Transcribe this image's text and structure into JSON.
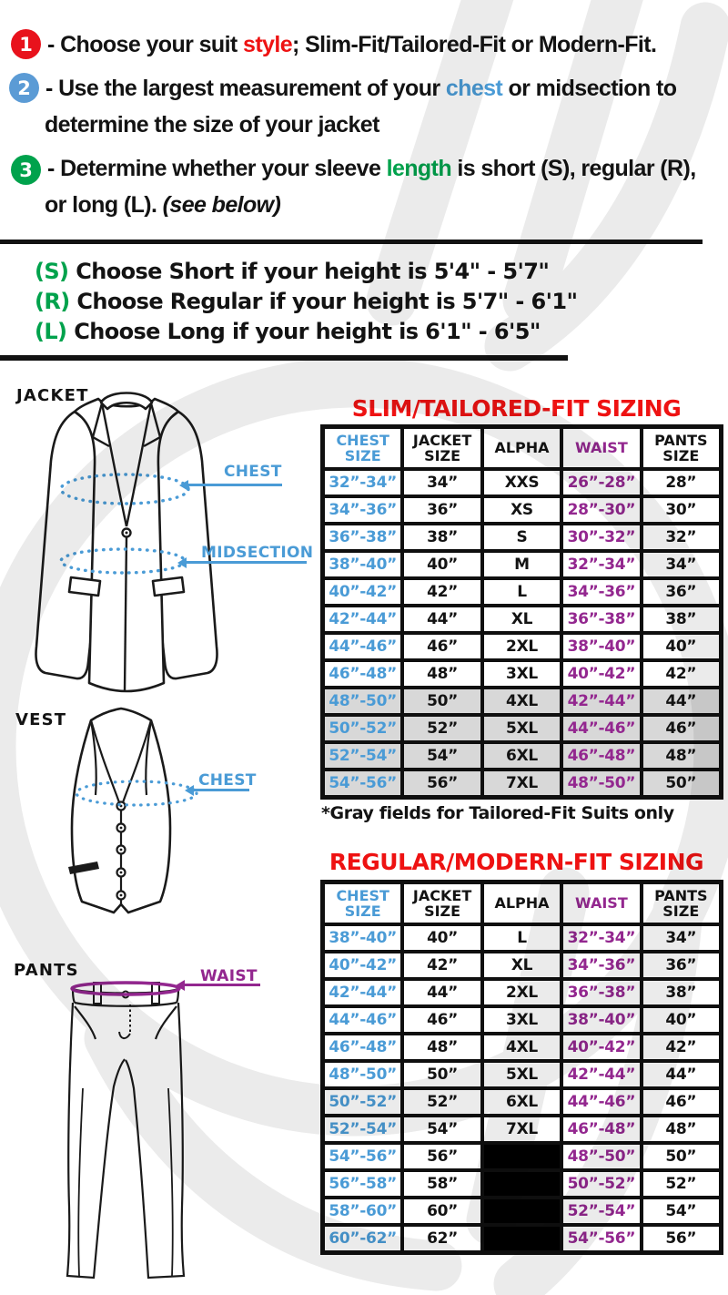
{
  "colors": {
    "red": "#ee1212",
    "blue": "#4a9bd6",
    "purple": "#93278f",
    "green": "#00a24c",
    "badge_red": "#e8121c",
    "badge_blue": "#5b9bd5",
    "badge_green": "#00a24c",
    "gray_row": "#d8d8d8",
    "table_border": "#0f0f0f"
  },
  "instructions": {
    "badges": [
      {
        "number": "1",
        "color": "#e8121c"
      },
      {
        "number": "2",
        "color": "#5b9bd5"
      },
      {
        "number": "3",
        "color": "#00a24c"
      }
    ],
    "lines": [
      {
        "parts": [
          {
            "text": "- Choose your suit "
          },
          {
            "text": "style",
            "color": "red"
          },
          {
            "text": "; Slim-Fit/Tailored-Fit or Modern-Fit."
          }
        ]
      },
      {
        "parts": [
          {
            "text": "- Use the largest measurement of your "
          },
          {
            "text": "chest",
            "color": "blue"
          },
          {
            "text": " or midsection to"
          }
        ]
      },
      {
        "parts": [
          {
            "text": "determine the size of your jacket"
          }
        ]
      },
      {
        "parts": [
          {
            "text": "- Determine whether your sleeve "
          },
          {
            "text": "length",
            "color": "green"
          },
          {
            "text": " is short (S), regular (R),"
          }
        ]
      },
      {
        "parts": [
          {
            "text": "or long (L). "
          },
          {
            "text": "(see below)",
            "italic": true
          }
        ]
      }
    ]
  },
  "height_guide": {
    "items": [
      {
        "prefix": "(S)",
        "text": " Choose Short if your height is 5'4\" - 5'7\""
      },
      {
        "prefix": "(R)",
        "text": " Choose Regular if your height is 5'7\" - 6'1\""
      },
      {
        "prefix": "(L)",
        "text": " Choose Long if your height is 6'1\" - 6'5\""
      }
    ]
  },
  "figures": {
    "jacket": {
      "label": "JACKET",
      "measurements": [
        {
          "label": "CHEST"
        },
        {
          "label": "MIDSECTION"
        }
      ]
    },
    "vest": {
      "label": "VEST",
      "measurements": [
        {
          "label": "CHEST"
        }
      ]
    },
    "pants": {
      "label": "PANTS",
      "measurements": [
        {
          "label": "WAIST"
        }
      ]
    }
  },
  "tables": [
    {
      "title": "SLIM/TAILORED-FIT SIZING",
      "note": "*Gray fields for Tailored-Fit Suits only",
      "columns": [
        {
          "lines": [
            "CHEST",
            "SIZE"
          ],
          "color": "blue"
        },
        {
          "lines": [
            "JACKET",
            "SIZE"
          ]
        },
        {
          "lines": [
            "ALPHA"
          ]
        },
        {
          "lines": [
            "WAIST"
          ],
          "color": "purple"
        },
        {
          "lines": [
            "PANTS",
            "SIZE"
          ]
        }
      ],
      "rows": [
        {
          "cells": [
            "32”-34”",
            "34”",
            "XXS",
            "26”-28”",
            "28”"
          ]
        },
        {
          "cells": [
            "34”-36”",
            "36”",
            "XS",
            "28”-30”",
            "30”"
          ]
        },
        {
          "cells": [
            "36”-38”",
            "38”",
            "S",
            "30”-32”",
            "32”"
          ]
        },
        {
          "cells": [
            "38”-40”",
            "40”",
            "M",
            "32”-34”",
            "34”"
          ]
        },
        {
          "cells": [
            "40”-42”",
            "42”",
            "L",
            "34”-36”",
            "36”"
          ]
        },
        {
          "cells": [
            "42”-44”",
            "44”",
            "XL",
            "36”-38”",
            "38”"
          ]
        },
        {
          "cells": [
            "44”-46”",
            "46”",
            "2XL",
            "38”-40”",
            "40”"
          ]
        },
        {
          "cells": [
            "46”-48”",
            "48”",
            "3XL",
            "40”-42”",
            "42”"
          ]
        },
        {
          "cells": [
            "48”-50”",
            "50”",
            "4XL",
            "42”-44”",
            "44”"
          ],
          "gray": true
        },
        {
          "cells": [
            "50”-52”",
            "52”",
            "5XL",
            "44”-46”",
            "46”"
          ],
          "gray": true
        },
        {
          "cells": [
            "52”-54”",
            "54”",
            "6XL",
            "46”-48”",
            "48”"
          ],
          "gray": true
        },
        {
          "cells": [
            "54”-56”",
            "56”",
            "7XL",
            "48”-50”",
            "50”"
          ],
          "gray": true
        }
      ]
    },
    {
      "title": "REGULAR/MODERN-FIT SIZING",
      "columns": [
        {
          "lines": [
            "CHEST",
            "SIZE"
          ],
          "color": "blue"
        },
        {
          "lines": [
            "JACKET",
            "SIZE"
          ]
        },
        {
          "lines": [
            "ALPHA"
          ]
        },
        {
          "lines": [
            "WAIST"
          ],
          "color": "purple"
        },
        {
          "lines": [
            "PANTS",
            "SIZE"
          ]
        }
      ],
      "rows": [
        {
          "cells": [
            "38”-40”",
            "40”",
            "L",
            "32”-34”",
            "34”"
          ]
        },
        {
          "cells": [
            "40”-42”",
            "42”",
            "XL",
            "34”-36”",
            "36”"
          ]
        },
        {
          "cells": [
            "42”-44”",
            "44”",
            "2XL",
            "36”-38”",
            "38”"
          ]
        },
        {
          "cells": [
            "44”-46”",
            "46”",
            "3XL",
            "38”-40”",
            "40”"
          ]
        },
        {
          "cells": [
            "46”-48”",
            "48”",
            "4XL",
            "40”-42”",
            "42”"
          ]
        },
        {
          "cells": [
            "48”-50”",
            "50”",
            "5XL",
            "42”-44”",
            "44”"
          ]
        },
        {
          "cells": [
            "50”-52”",
            "52”",
            "6XL",
            "44”-46”",
            "46”"
          ]
        },
        {
          "cells": [
            "52”-54”",
            "54”",
            "7XL",
            "46”-48”",
            "48”"
          ]
        },
        {
          "cells": [
            "54”-56”",
            "56”",
            null,
            "48”-50”",
            "50”"
          ]
        },
        {
          "cells": [
            "56”-58”",
            "58”",
            null,
            "50”-52”",
            "52”"
          ]
        },
        {
          "cells": [
            "58”-60”",
            "60”",
            null,
            "52”-54”",
            "54”"
          ]
        },
        {
          "cells": [
            "60”-62”",
            "62”",
            null,
            "54”-56”",
            "56”"
          ]
        }
      ]
    }
  ]
}
